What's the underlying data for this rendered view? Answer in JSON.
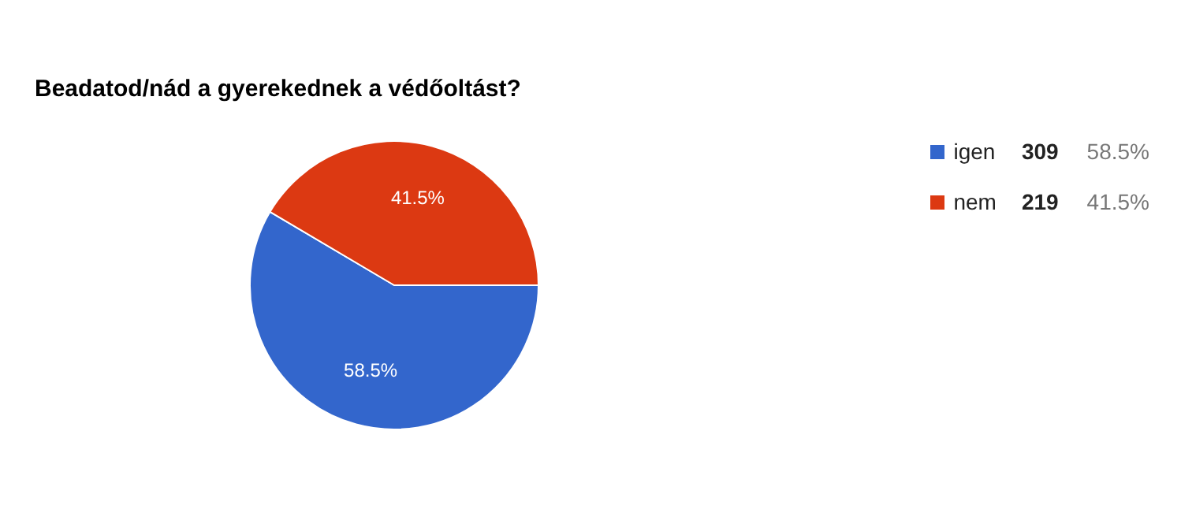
{
  "chart_data": {
    "type": "pie",
    "title": "Beadatod/nád a gyerekednek a védőoltást?",
    "categories": [
      "igen",
      "nem"
    ],
    "values": [
      58.5,
      41.5
    ],
    "value_labels": [
      "58.5%",
      "41.5%"
    ],
    "colors": [
      "#3366cc",
      "#dc3912"
    ],
    "annotations": [
      "309",
      "219"
    ],
    "legend": "top right"
  }
}
